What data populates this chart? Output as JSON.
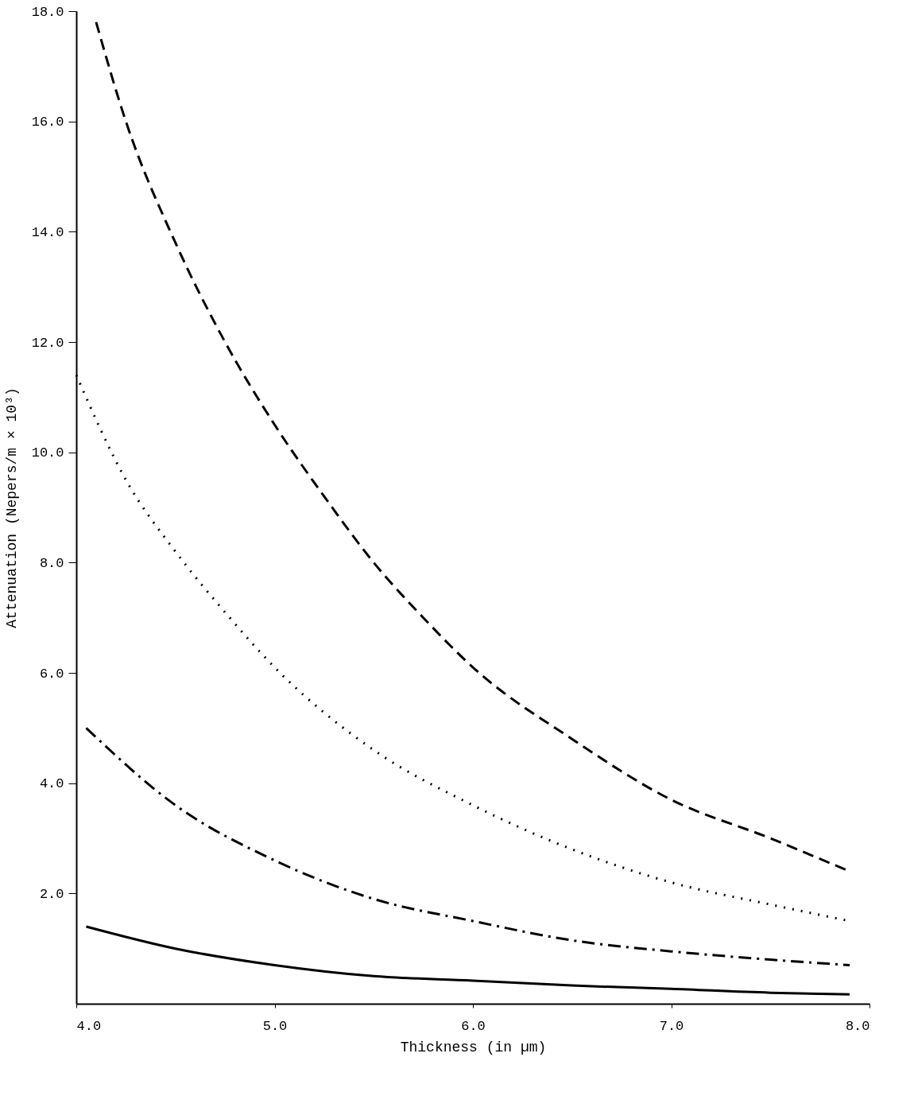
{
  "chart_data": {
    "type": "line",
    "xlabel": "Thickness (in µm)",
    "ylabel": "Attenuation (Nepers/m × 10³)",
    "xlim": [
      4.0,
      8.0
    ],
    "ylim": [
      0,
      18.0
    ],
    "xticks": [
      {
        "value": 4,
        "label": "4.0"
      },
      {
        "value": 5,
        "label": "5.0"
      },
      {
        "value": 6,
        "label": "6.0"
      },
      {
        "value": 7,
        "label": "7.0"
      },
      {
        "value": 8,
        "label": "8.0"
      }
    ],
    "yticks": [
      {
        "value": 2,
        "label": "2.0"
      },
      {
        "value": 4,
        "label": "4.0"
      },
      {
        "value": 6,
        "label": "6.0"
      },
      {
        "value": 8,
        "label": "8.0"
      },
      {
        "value": 10,
        "label": "10.0"
      },
      {
        "value": 12,
        "label": "12.0"
      },
      {
        "value": 14,
        "label": "14.0"
      },
      {
        "value": 16,
        "label": "16.0"
      },
      {
        "value": 18,
        "label": "18.0"
      }
    ],
    "grid": false,
    "series": [
      {
        "color": "#000000",
        "line_style": "dashed",
        "x": [
          4.1,
          4.25,
          4.5,
          4.75,
          5.0,
          5.25,
          5.5,
          5.75,
          6.0,
          6.5,
          7.0,
          7.5,
          7.9
        ],
        "values": [
          17.8,
          16.0,
          13.8,
          12.0,
          10.5,
          9.2,
          8.0,
          7.0,
          6.1,
          4.8,
          3.7,
          3.0,
          2.4
        ]
      },
      {
        "color": "#000000",
        "line_style": "dotted",
        "x": [
          4.0,
          4.25,
          4.5,
          4.75,
          5.0,
          5.5,
          6.0,
          6.5,
          7.0,
          7.5,
          7.9
        ],
        "values": [
          11.4,
          9.5,
          8.2,
          7.1,
          6.1,
          4.6,
          3.6,
          2.8,
          2.2,
          1.8,
          1.5
        ]
      },
      {
        "color": "#000000",
        "line_style": "dashdot",
        "x": [
          4.05,
          4.5,
          5.0,
          5.5,
          6.0,
          6.5,
          7.0,
          7.5,
          7.9
        ],
        "values": [
          5.0,
          3.6,
          2.6,
          1.9,
          1.5,
          1.15,
          0.95,
          0.8,
          0.7
        ]
      },
      {
        "color": "#000000",
        "line_style": "solid",
        "x": [
          4.05,
          4.5,
          5.0,
          5.5,
          6.0,
          6.5,
          7.0,
          7.5,
          7.9
        ],
        "values": [
          1.4,
          1.0,
          0.7,
          0.5,
          0.42,
          0.33,
          0.27,
          0.2,
          0.17
        ]
      }
    ]
  }
}
